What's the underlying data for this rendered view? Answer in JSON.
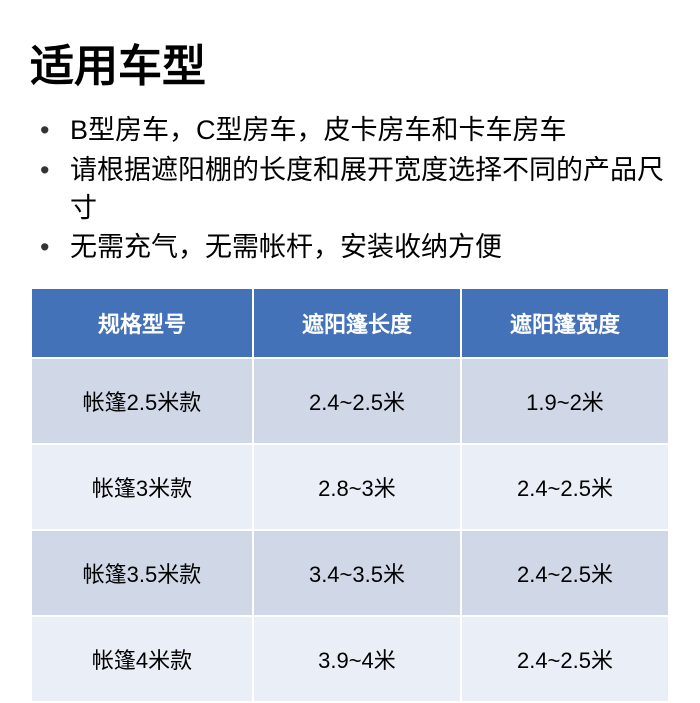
{
  "title": "适用车型",
  "bullets": [
    "B型房车，C型房车，皮卡房车和卡车房车",
    "请根据遮阳棚的长度和展开宽度选择不同的产品尺寸",
    "无需充气，无需帐杆，安装收纳方便"
  ],
  "table": {
    "columns": [
      "规格型号",
      "遮阳篷长度",
      "遮阳篷宽度"
    ],
    "rows": [
      [
        "帐篷2.5米款",
        "2.4~2.5米",
        "1.9~2米"
      ],
      [
        "帐篷3米款",
        "2.8~3米",
        "2.4~2.5米"
      ],
      [
        "帐篷3.5米款",
        "3.4~3.5米",
        "2.4~2.5米"
      ],
      [
        "帐篷4米款",
        "3.9~4米",
        "2.4~2.5米"
      ]
    ],
    "header_bg": "#4472b8",
    "header_fg": "#ffffff",
    "row_even_bg": "#d0d8e8",
    "row_odd_bg": "#eaeef6",
    "title_fontsize": 44,
    "bullet_fontsize": 27,
    "table_fontsize": 22
  }
}
